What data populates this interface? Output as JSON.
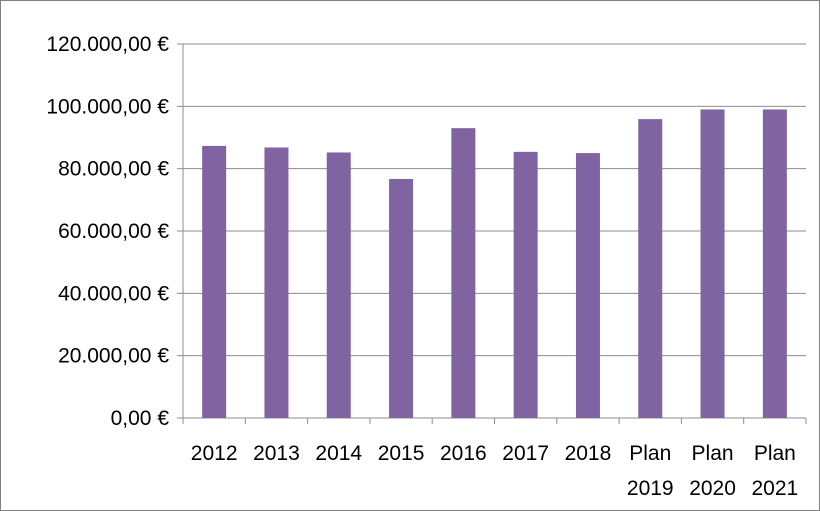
{
  "chart_data": {
    "type": "bar",
    "title": "",
    "xlabel": "",
    "ylabel": "",
    "categories": [
      [
        "2012"
      ],
      [
        "2013"
      ],
      [
        "2014"
      ],
      [
        "2015"
      ],
      [
        "2016"
      ],
      [
        "2017"
      ],
      [
        "2018"
      ],
      [
        "Plan",
        "2019"
      ],
      [
        "Plan",
        "2020"
      ],
      [
        "Plan",
        "2021"
      ]
    ],
    "series": [
      {
        "color": "#8064A2",
        "values": [
          87300,
          86800,
          85200,
          76700,
          93000,
          85400,
          85000,
          95900,
          99000,
          99000
        ]
      }
    ],
    "ylim": [
      0,
      120000
    ],
    "yticks": [
      0,
      20000,
      40000,
      60000,
      80000,
      100000,
      120000
    ],
    "ytick_labels": [
      "0,00 €",
      "20.000,00 €",
      "40.000,00 €",
      "60.000,00 €",
      "80.000,00 €",
      "100.000,00 €",
      "120.000,00 €"
    ],
    "grid": true,
    "legend": "none"
  }
}
